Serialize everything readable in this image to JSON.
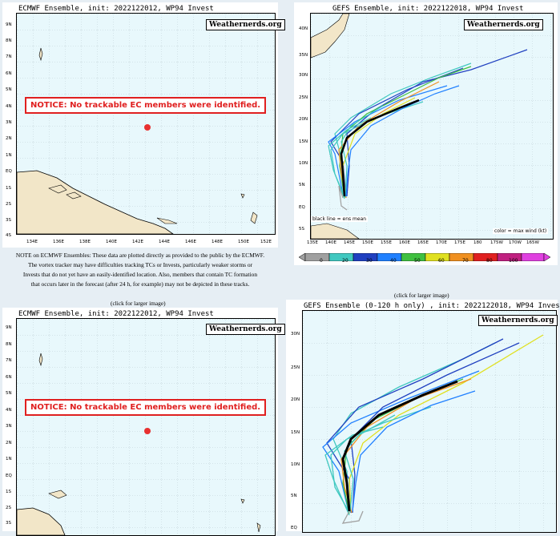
{
  "top_left": {
    "title": "ECMWF Ensemble, init: 2022122012, WP94 Invest",
    "watermark": "Weathernerds.org",
    "notice": "NOTICE: No trackable EC members were identified.",
    "y_ticks": [
      "9N",
      "8N",
      "7N",
      "6N",
      "5N",
      "4N",
      "3N",
      "2N",
      "1N",
      "EQ",
      "1S",
      "2S",
      "3S",
      "4S"
    ],
    "x_ticks": [
      "134E",
      "136E",
      "138E",
      "140E",
      "142E",
      "144E",
      "146E",
      "148E",
      "150E",
      "152E"
    ]
  },
  "caption": {
    "lines": [
      "NOTE on ECMWF Ensembles: These data are plotted directly as provided to the public by the ECMWF.",
      "The vortex tracker may have difficulties tracking TCs or Invests, particularly weaker storms or",
      "Invests that do not yet have an easily-identified location. Also, members that contain TC formation",
      "that occurs later in the forecast (after 24 h, for example) may not be depicted in these tracks."
    ]
  },
  "top_right": {
    "title": "GEFS Ensemble, init: 2022122018, WP94 Invest",
    "watermark": "Weathernerds.org",
    "y_ticks": [
      "40N",
      "35N",
      "30N",
      "25N",
      "20N",
      "15N",
      "10N",
      "5N",
      "EQ",
      "5S"
    ],
    "x_ticks": [
      "135E",
      "140E",
      "145E",
      "150E",
      "155E",
      "160E",
      "165E",
      "170E",
      "175E",
      "180",
      "175W",
      "170W",
      "165W"
    ],
    "legend_left": "black line = ens mean",
    "legend_right": "color = max wind (kt)",
    "colorbar": {
      "labels": [
        "0",
        "20",
        "30",
        "40",
        "50",
        "60",
        "70",
        "80",
        "100"
      ],
      "colors": [
        "#a0a0a0",
        "#40c8c0",
        "#2040c0",
        "#2080ff",
        "#40c040",
        "#e0e020",
        "#f09020",
        "#e02020",
        "#c02080",
        "#e040e0"
      ]
    }
  },
  "click_labels": {
    "left": "(click for larger image)",
    "right": "(click for larger image)"
  },
  "bottom_left": {
    "title": "ECMWF Ensemble, init: 2022122012, WP94 Invest",
    "watermark": "Weathernerds.org",
    "notice": "NOTICE: No trackable EC members were identified.",
    "y_ticks": [
      "9N",
      "8N",
      "7N",
      "6N",
      "5N",
      "4N",
      "3N",
      "2N",
      "1N",
      "EQ",
      "1S",
      "2S",
      "3S"
    ]
  },
  "bottom_right": {
    "title": "GEFS Ensemble (0-120 h only) , init: 2022122018, WP94 Invest",
    "watermark": "Weathernerds.org",
    "y_ticks": [
      "30N",
      "25N",
      "20N",
      "15N",
      "10N",
      "5N",
      "EQ"
    ]
  }
}
